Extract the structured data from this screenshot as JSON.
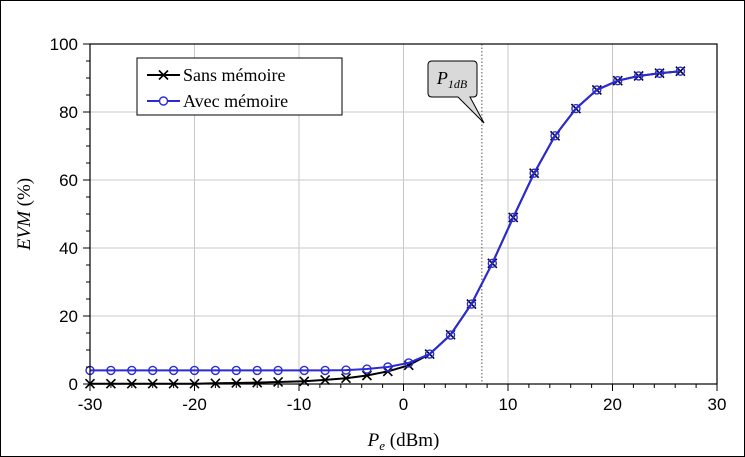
{
  "chart_data": {
    "type": "line",
    "title": "",
    "xlabel": {
      "main": "P",
      "sub": "e",
      "unit": " (dBm)"
    },
    "ylabel": {
      "main": "EVM",
      "unit": " (%)"
    },
    "xlim": [
      -30,
      30
    ],
    "ylim": [
      0,
      100
    ],
    "xticks": [
      -30,
      -20,
      -10,
      0,
      10,
      20,
      30
    ],
    "yticks": [
      0,
      20,
      40,
      60,
      80,
      100
    ],
    "grid": true,
    "legend_position": "top-left",
    "annotation": {
      "main": "P",
      "sub": "1dB",
      "x": 7.5
    },
    "series": [
      {
        "name": "Sans mémoire",
        "color": "#000000",
        "marker": "x",
        "x": [
          -30,
          -28,
          -26,
          -24,
          -22,
          -20,
          -18,
          -16,
          -14,
          -12,
          -9.5,
          -7.5,
          -5.5,
          -3.5,
          -1.5,
          0.5,
          2.5,
          4.5,
          6.5,
          8.5,
          10.5,
          12.5,
          14.5,
          16.5,
          18.5,
          20.5,
          22.5,
          24.5,
          26.5
        ],
        "y": [
          0.1,
          0.1,
          0.1,
          0.1,
          0.1,
          0.1,
          0.2,
          0.3,
          0.4,
          0.6,
          0.8,
          1.2,
          1.7,
          2.5,
          3.7,
          5.5,
          8.8,
          14.5,
          23.5,
          35.5,
          49,
          62,
          73,
          81,
          86.5,
          89.2,
          90.6,
          91.4,
          92
        ]
      },
      {
        "name": "Avec mémoire",
        "color": "#2b2bd6",
        "marker": "o",
        "x": [
          -30,
          -28,
          -26,
          -24,
          -22,
          -20,
          -18,
          -16,
          -14,
          -12,
          -9.5,
          -7.5,
          -5.5,
          -3.5,
          -1.5,
          0.5,
          2.5,
          4.5,
          6.5,
          8.5,
          10.5,
          12.5,
          14.5,
          16.5,
          18.5,
          20.5,
          22.5,
          24.5,
          26.5
        ],
        "y": [
          4,
          4,
          4,
          4,
          4,
          4,
          4,
          4,
          4,
          4,
          4,
          4,
          4.1,
          4.4,
          5,
          6.2,
          8.8,
          14.4,
          23.5,
          35.5,
          49,
          62,
          73,
          81,
          86.5,
          89.2,
          90.6,
          91.4,
          92
        ]
      }
    ]
  }
}
